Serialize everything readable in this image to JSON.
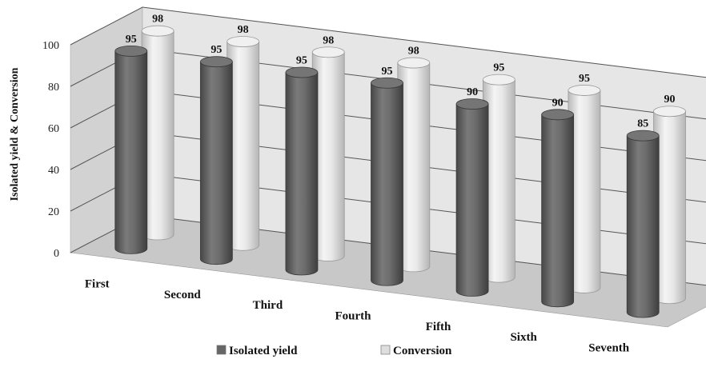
{
  "chart_data": {
    "type": "bar",
    "style": "3d-cylinder",
    "categories": [
      "First",
      "Second",
      "Third",
      "Fourth",
      "Fifth",
      "Sixth",
      "Seventh"
    ],
    "series": [
      {
        "name": "Isolated yield",
        "values": [
          95,
          95,
          95,
          95,
          90,
          90,
          85
        ],
        "color": "#666666"
      },
      {
        "name": "Conversion",
        "values": [
          98,
          98,
          98,
          98,
          95,
          95,
          90
        ],
        "color": "#dedede"
      }
    ],
    "title": "",
    "xlabel": "",
    "ylabel": "Isolated yield & Conversion",
    "ylim": [
      0,
      100
    ],
    "yticks": [
      0,
      20,
      40,
      60,
      80,
      100
    ],
    "grid": true,
    "legend": "bottom",
    "data_labels": true,
    "colors": {
      "wall": "#e6e6e6",
      "floor": "#c8c8c8",
      "grid": "#555555"
    }
  }
}
